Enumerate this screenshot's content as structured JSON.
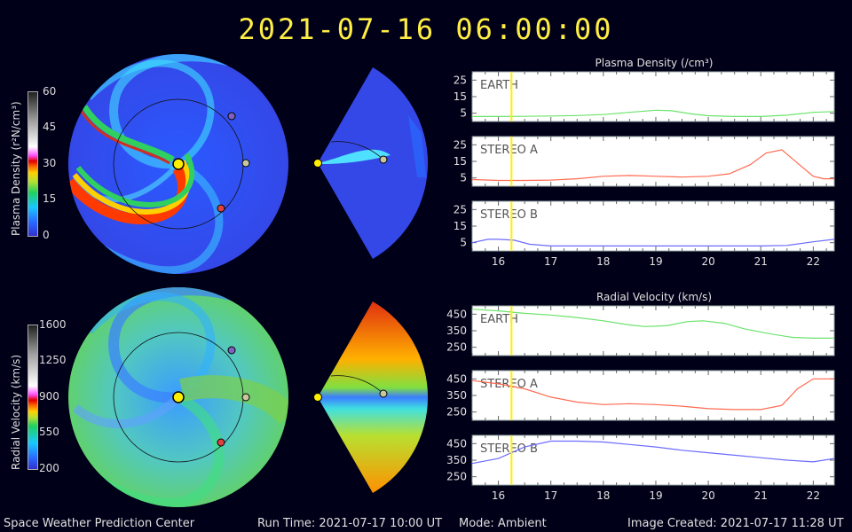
{
  "header": {
    "timestamp": "2021-07-16  06:00:00"
  },
  "density_colorbar": {
    "title": "Plasma Density (r²N/cm³)",
    "ticks": [
      "60",
      "45",
      "30",
      "15",
      "0"
    ]
  },
  "velocity_colorbar": {
    "title": "Radial Velocity (km/s)",
    "ticks": [
      "1600",
      "1250",
      "900",
      "550",
      "200"
    ]
  },
  "chart_data": [
    {
      "type": "line",
      "title": "Plasma Density (/cm³)",
      "x_ticks": [
        "16",
        "17",
        "18",
        "19",
        "20",
        "21",
        "22"
      ],
      "xlim": [
        15.5,
        22.4
      ],
      "current_time": 16.25,
      "panels": [
        {
          "name": "EARTH",
          "color": "#6be36b",
          "yticks": [
            "25",
            "15",
            "5"
          ],
          "ylim": [
            0,
            30
          ],
          "x": [
            15.5,
            16,
            16.5,
            17,
            17.5,
            18,
            18.5,
            19,
            19.3,
            19.7,
            20,
            20.5,
            21,
            21.5,
            22,
            22.4
          ],
          "y": [
            3,
            3,
            3.1,
            3.3,
            3.6,
            4.2,
            5.5,
            6.8,
            6.5,
            4.5,
            3.5,
            3,
            3,
            3.8,
            5.5,
            6
          ]
        },
        {
          "name": "STEREO A",
          "color": "#ff6a50",
          "yticks": [
            "25",
            "15",
            "5"
          ],
          "ylim": [
            0,
            30
          ],
          "x": [
            15.5,
            16,
            16.5,
            17,
            17.5,
            18,
            18.5,
            19,
            19.5,
            20,
            20.4,
            20.8,
            21.1,
            21.4,
            21.7,
            22,
            22.2,
            22.4
          ],
          "y": [
            4,
            3.5,
            3.5,
            3.7,
            4.5,
            6,
            6.5,
            6,
            5.5,
            6,
            7.5,
            13,
            20,
            22,
            14,
            6,
            4.5,
            4.5
          ]
        },
        {
          "name": "STEREO B",
          "color": "#6b6bff",
          "yticks": [
            "25",
            "15",
            "5"
          ],
          "ylim": [
            0,
            30
          ],
          "x": [
            15.5,
            15.8,
            16,
            16.3,
            16.6,
            17,
            17.5,
            18,
            18.5,
            19,
            19.5,
            20,
            20.5,
            21,
            21.5,
            22,
            22.4
          ],
          "y": [
            5,
            7,
            7,
            6.5,
            4,
            3,
            3,
            3,
            3,
            3,
            3,
            3,
            3,
            3,
            3.3,
            5.5,
            7
          ]
        }
      ]
    },
    {
      "type": "line",
      "title": "Radial Velocity (km/s)",
      "x_ticks": [
        "16",
        "17",
        "18",
        "19",
        "20",
        "21",
        "22"
      ],
      "xlim": [
        15.5,
        22.4
      ],
      "current_time": 16.25,
      "panels": [
        {
          "name": "EARTH",
          "color": "#6be36b",
          "yticks": [
            "450",
            "350",
            "250"
          ],
          "ylim": [
            200,
            500
          ],
          "x": [
            15.5,
            16,
            16.5,
            17,
            17.5,
            18,
            18.5,
            18.8,
            19.2,
            19.6,
            19.9,
            20.3,
            20.7,
            21.2,
            21.6,
            22,
            22.4
          ],
          "y": [
            480,
            470,
            455,
            445,
            430,
            410,
            385,
            375,
            380,
            405,
            410,
            395,
            360,
            330,
            310,
            305,
            305
          ]
        },
        {
          "name": "STEREO A",
          "color": "#ff6a50",
          "yticks": [
            "450",
            "350",
            "250"
          ],
          "ylim": [
            200,
            500
          ],
          "x": [
            15.5,
            16,
            16.5,
            17,
            17.5,
            18,
            18.5,
            19,
            19.5,
            20,
            20.5,
            21,
            21.4,
            21.7,
            22,
            22.4
          ],
          "y": [
            440,
            420,
            390,
            340,
            310,
            295,
            300,
            295,
            285,
            270,
            265,
            265,
            290,
            390,
            450,
            450
          ]
        },
        {
          "name": "STEREO B",
          "color": "#6b6bff",
          "yticks": [
            "450",
            "350",
            "250"
          ],
          "ylim": [
            200,
            500
          ],
          "x": [
            15.5,
            16,
            16.5,
            17,
            17.5,
            18,
            18.5,
            19,
            19.5,
            20,
            20.5,
            21,
            21.5,
            22,
            22.4
          ],
          "y": [
            330,
            360,
            430,
            465,
            465,
            460,
            445,
            430,
            410,
            395,
            380,
            365,
            350,
            340,
            360
          ]
        }
      ]
    }
  ],
  "footer": {
    "org": "Space Weather Prediction Center",
    "run_time": "Run Time: 2021-07-17 10:00 UT",
    "mode": "Mode: Ambient",
    "created": "Image Created: 2021-07-17 11:28 UT"
  }
}
